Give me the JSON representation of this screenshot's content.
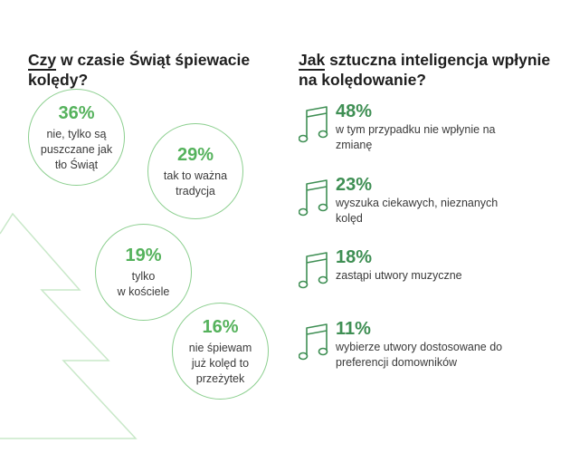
{
  "left_survey": {
    "question_first_word": "Czy",
    "question_rest": " w czasie Świąt śpiewacie kolędy?",
    "answers": [
      {
        "percent": "36%",
        "label": "nie, tylko są\npuszczane jak\ntło Świąt"
      },
      {
        "percent": "29%",
        "label": "tak to ważna\ntradycja"
      },
      {
        "percent": "19%",
        "label": "tylko\nw kościele"
      },
      {
        "percent": "16%",
        "label": "nie śpiewam\njuż kolęd to\nprzeżytek"
      }
    ]
  },
  "right_survey": {
    "question_first_word": "Jak",
    "question_rest": " sztuczna inteligencja wpłynie na kolędowanie?",
    "icon": "music-note-icon",
    "answers": [
      {
        "percent": "48%",
        "label": "w tym przypadku nie wpłynie na zmianę"
      },
      {
        "percent": "23%",
        "label": "wyszuka ciekawych, nieznanych kolęd"
      },
      {
        "percent": "18%",
        "label": "zastąpi utwory muzyczne"
      },
      {
        "percent": "11%",
        "label": "wybierze utwory dostosowane do preferencji domowników"
      }
    ]
  },
  "colors": {
    "circle_border": "#8ccf8f",
    "circle_percent": "#55b25c",
    "stat_percent": "#3f8f54",
    "note_icon": "#3f8f54",
    "tree_outline": "#c9e8c9"
  }
}
